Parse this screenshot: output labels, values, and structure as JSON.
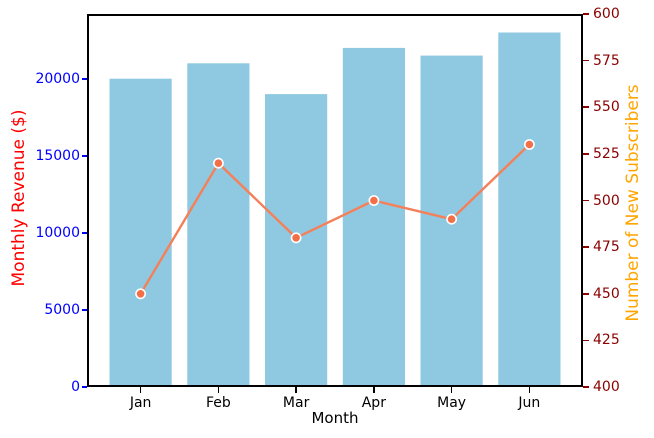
{
  "chart_data": {
    "type": "bar",
    "subtype": "bar-with-line-overlay-dual-axis",
    "categories": [
      "Jan",
      "Feb",
      "Mar",
      "Apr",
      "May",
      "Jun"
    ],
    "series": [
      {
        "name": "Monthly Revenue ($)",
        "plot": "bar",
        "axis": "left",
        "color": "#8FC9E1",
        "values": [
          20000,
          21000,
          19000,
          22000,
          21500,
          23000
        ]
      },
      {
        "name": "Number of New Subscribers",
        "plot": "line",
        "axis": "right",
        "color": "#F4805A",
        "marker_color": "#F26F47",
        "marker_edge_color": "#FFFFFF",
        "values": [
          450,
          520,
          480,
          500,
          490,
          530
        ]
      }
    ],
    "title": "",
    "xlabel": "Month",
    "axes": {
      "left": {
        "label": "Monthly Revenue ($)",
        "label_color": "#FF0000",
        "tick_color": "#0000FF",
        "ticks": [
          0,
          5000,
          10000,
          15000,
          20000
        ],
        "range": [
          0,
          24200
        ]
      },
      "right": {
        "label": "Number of New Subscribers",
        "label_color": "#FFA500",
        "tick_color": "#8B0000",
        "ticks": [
          400,
          425,
          450,
          475,
          500,
          525,
          550,
          575,
          600
        ],
        "range": [
          400,
          600
        ]
      },
      "x": {
        "label": "Month",
        "tick_color": "#000000",
        "ticks": [
          "Jan",
          "Feb",
          "Mar",
          "Apr",
          "May",
          "Jun"
        ]
      }
    },
    "grid": false,
    "legend": "none",
    "spine_color": "#000000"
  }
}
